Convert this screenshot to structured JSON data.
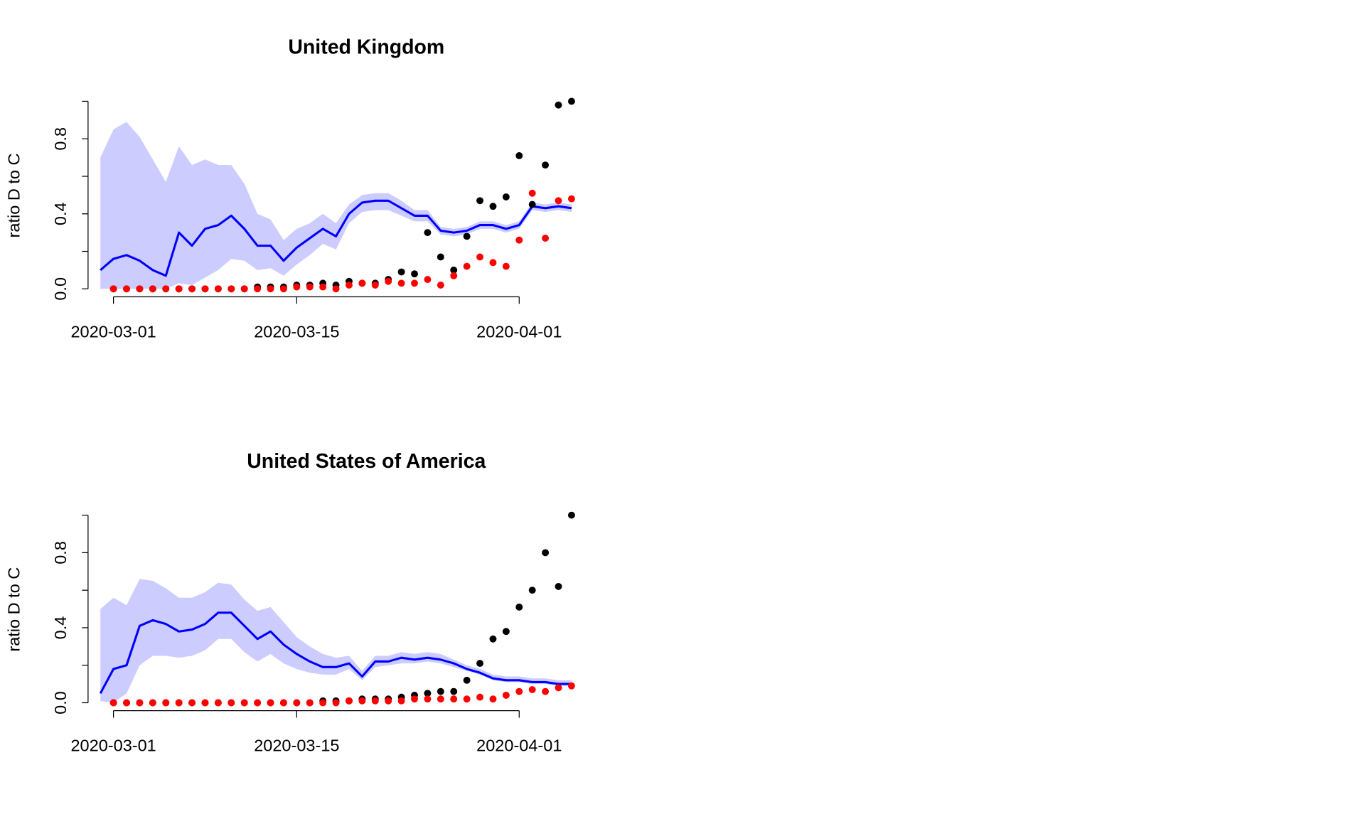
{
  "chart_data": [
    {
      "type": "line",
      "title": "United Kingdom",
      "ylabel": "ratio D to C",
      "x": [
        "2020-02-29",
        "2020-03-01",
        "2020-03-02",
        "2020-03-03",
        "2020-03-04",
        "2020-03-05",
        "2020-03-06",
        "2020-03-07",
        "2020-03-08",
        "2020-03-09",
        "2020-03-10",
        "2020-03-11",
        "2020-03-12",
        "2020-03-13",
        "2020-03-14",
        "2020-03-15",
        "2020-03-16",
        "2020-03-17",
        "2020-03-18",
        "2020-03-19",
        "2020-03-20",
        "2020-03-21",
        "2020-03-22",
        "2020-03-23",
        "2020-03-24",
        "2020-03-25",
        "2020-03-26",
        "2020-03-27",
        "2020-03-28",
        "2020-03-29",
        "2020-03-30",
        "2020-03-31",
        "2020-04-01",
        "2020-04-02",
        "2020-04-03",
        "2020-04-04",
        "2020-04-05"
      ],
      "xlim": [
        "2020-02-29",
        "2020-04-05"
      ],
      "xticks": [
        "2020-03-01",
        "2020-03-15",
        "2020-04-01"
      ],
      "ylim": [
        0,
        1
      ],
      "yticks": [
        {
          "value": 0,
          "label": "0.0"
        },
        {
          "value": 0.2,
          "label": null
        },
        {
          "value": 0.4,
          "label": "0.4"
        },
        {
          "value": 0.6,
          "label": null
        },
        {
          "value": 0.8,
          "label": "0.8"
        },
        {
          "value": 1,
          "label": null
        }
      ],
      "band": {
        "color": "#ccccff",
        "upper": [
          0.7,
          0.85,
          0.89,
          0.81,
          0.69,
          0.57,
          0.76,
          0.66,
          0.69,
          0.66,
          0.66,
          0.56,
          0.4,
          0.37,
          0.26,
          0.32,
          0.35,
          0.4,
          0.35,
          0.45,
          0.5,
          0.51,
          0.51,
          0.47,
          0.42,
          0.42,
          0.33,
          0.32,
          0.33,
          0.36,
          0.36,
          0.34,
          0.36,
          0.46,
          0.45,
          0.46,
          0.45
        ],
        "lower": [
          0,
          0,
          0,
          0,
          0,
          0,
          0.03,
          0.02,
          0.06,
          0.1,
          0.16,
          0.15,
          0.1,
          0.11,
          0.07,
          0.13,
          0.18,
          0.24,
          0.21,
          0.35,
          0.41,
          0.42,
          0.42,
          0.39,
          0.36,
          0.36,
          0.29,
          0.28,
          0.29,
          0.32,
          0.32,
          0.3,
          0.32,
          0.42,
          0.41,
          0.42,
          0.41
        ]
      },
      "series": [
        {
          "color": "#0000ff",
          "values": [
            0.1,
            0.16,
            0.18,
            0.15,
            0.1,
            0.07,
            0.3,
            0.23,
            0.32,
            0.34,
            0.39,
            0.32,
            0.23,
            0.23,
            0.15,
            0.22,
            0.27,
            0.32,
            0.28,
            0.4,
            0.46,
            0.47,
            0.47,
            0.43,
            0.39,
            0.39,
            0.31,
            0.3,
            0.31,
            0.34,
            0.34,
            0.32,
            0.34,
            0.44,
            0.43,
            0.44,
            0.43
          ]
        }
      ],
      "points": [
        {
          "color": "#000000",
          "values": [
            null,
            0,
            0,
            0,
            0,
            0,
            0,
            0,
            0,
            0,
            0,
            0,
            0.01,
            0.01,
            0.01,
            0.02,
            0.02,
            0.03,
            0.02,
            0.04,
            0.03,
            0.03,
            0.05,
            0.09,
            0.08,
            0.3,
            0.17,
            0.1,
            0.28,
            0.47,
            0.44,
            0.49,
            0.71,
            0.45,
            0.66,
            0.98,
            1.0
          ]
        },
        {
          "color": "#ff0000",
          "values": [
            null,
            0,
            0,
            0,
            0,
            0,
            0,
            0,
            0,
            0,
            0,
            0,
            0,
            0,
            0,
            0.01,
            0.01,
            0.01,
            0.0,
            0.02,
            0.03,
            0.02,
            0.04,
            0.03,
            0.03,
            0.05,
            0.02,
            0.07,
            0.12,
            0.17,
            0.14,
            0.12,
            0.26,
            0.51,
            0.27,
            0.47,
            0.48
          ]
        }
      ]
    },
    {
      "type": "line",
      "title": "United States of America",
      "ylabel": "ratio D to C",
      "x": [
        "2020-02-29",
        "2020-03-01",
        "2020-03-02",
        "2020-03-03",
        "2020-03-04",
        "2020-03-05",
        "2020-03-06",
        "2020-03-07",
        "2020-03-08",
        "2020-03-09",
        "2020-03-10",
        "2020-03-11",
        "2020-03-12",
        "2020-03-13",
        "2020-03-14",
        "2020-03-15",
        "2020-03-16",
        "2020-03-17",
        "2020-03-18",
        "2020-03-19",
        "2020-03-20",
        "2020-03-21",
        "2020-03-22",
        "2020-03-23",
        "2020-03-24",
        "2020-03-25",
        "2020-03-26",
        "2020-03-27",
        "2020-03-28",
        "2020-03-29",
        "2020-03-30",
        "2020-03-31",
        "2020-04-01",
        "2020-04-02",
        "2020-04-03",
        "2020-04-04",
        "2020-04-05"
      ],
      "xlim": [
        "2020-02-29",
        "2020-04-05"
      ],
      "xticks": [
        "2020-03-01",
        "2020-03-15",
        "2020-04-01"
      ],
      "ylim": [
        0,
        1
      ],
      "yticks": [
        {
          "value": 0,
          "label": "0.0"
        },
        {
          "value": 0.2,
          "label": null
        },
        {
          "value": 0.4,
          "label": "0.4"
        },
        {
          "value": 0.6,
          "label": null
        },
        {
          "value": 0.8,
          "label": "0.8"
        },
        {
          "value": 1,
          "label": null
        }
      ],
      "band": {
        "color": "#ccccff",
        "upper": [
          0.5,
          0.56,
          0.52,
          0.66,
          0.65,
          0.61,
          0.56,
          0.56,
          0.59,
          0.64,
          0.63,
          0.55,
          0.49,
          0.51,
          0.43,
          0.35,
          0.3,
          0.26,
          0.24,
          0.25,
          0.17,
          0.25,
          0.25,
          0.27,
          0.26,
          0.27,
          0.26,
          0.23,
          0.2,
          0.18,
          0.15,
          0.14,
          0.14,
          0.13,
          0.13,
          0.12,
          0.12
        ],
        "lower": [
          0.01,
          0,
          0.05,
          0.2,
          0.25,
          0.25,
          0.24,
          0.25,
          0.28,
          0.34,
          0.34,
          0.27,
          0.22,
          0.26,
          0.21,
          0.18,
          0.16,
          0.15,
          0.15,
          0.18,
          0.12,
          0.19,
          0.2,
          0.21,
          0.21,
          0.22,
          0.21,
          0.19,
          0.17,
          0.15,
          0.12,
          0.11,
          0.11,
          0.1,
          0.1,
          0.09,
          0.09
        ]
      },
      "series": [
        {
          "color": "#0000ff",
          "values": [
            0.05,
            0.18,
            0.2,
            0.41,
            0.44,
            0.42,
            0.38,
            0.39,
            0.42,
            0.48,
            0.48,
            0.41,
            0.34,
            0.38,
            0.31,
            0.26,
            0.22,
            0.19,
            0.19,
            0.21,
            0.14,
            0.22,
            0.22,
            0.24,
            0.23,
            0.24,
            0.23,
            0.21,
            0.18,
            0.16,
            0.13,
            0.12,
            0.12,
            0.11,
            0.11,
            0.1,
            0.1
          ]
        }
      ],
      "points": [
        {
          "color": "#000000",
          "values": [
            null,
            0,
            0,
            0,
            0,
            0,
            0,
            0,
            0,
            0,
            0,
            0,
            0,
            0,
            0,
            0,
            0,
            0.01,
            0.01,
            0.01,
            0.02,
            0.02,
            0.02,
            0.03,
            0.04,
            0.05,
            0.06,
            0.06,
            0.12,
            0.21,
            0.34,
            0.38,
            0.51,
            0.6,
            0.8,
            0.62,
            1.0
          ]
        },
        {
          "color": "#ff0000",
          "values": [
            null,
            0,
            0,
            0,
            0,
            0,
            0,
            0,
            0,
            0,
            0,
            0,
            0,
            0,
            0,
            0,
            0,
            0,
            0,
            0.01,
            0.01,
            0.01,
            0.01,
            0.01,
            0.02,
            0.02,
            0.02,
            0.02,
            0.02,
            0.03,
            0.02,
            0.04,
            0.06,
            0.07,
            0.06,
            0.08,
            0.09
          ]
        }
      ]
    }
  ]
}
